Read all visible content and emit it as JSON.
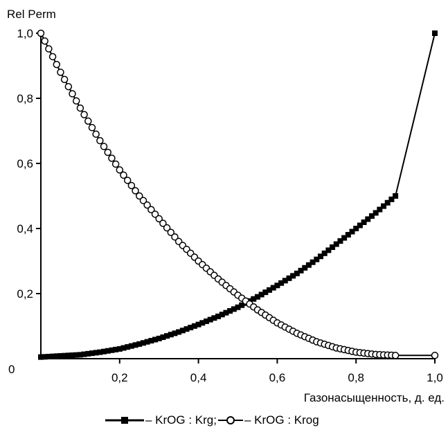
{
  "chart_data": {
    "type": "line",
    "title": "",
    "ylabel": "Rel Perm",
    "xlabel": "Газонасыщенность, д. ед.",
    "xlim": [
      0,
      1
    ],
    "ylim": [
      0,
      1
    ],
    "x_ticks": [
      "0,2",
      "0,4",
      "0,6",
      "0,8",
      "1,0"
    ],
    "y_ticks": [
      "0,2",
      "0,4",
      "0,6",
      "0,8",
      "1,0"
    ],
    "origin_label": "0",
    "grid": false,
    "legend_position": "bottom",
    "series": [
      {
        "name": "– KrOG : Krg;",
        "marker": "filled-square",
        "color": "#000000",
        "x": [
          0,
          0.1,
          0.15,
          0.2,
          0.25,
          0.3,
          0.35,
          0.4,
          0.45,
          0.5,
          0.55,
          0.6,
          0.65,
          0.7,
          0.75,
          0.8,
          0.85,
          0.9,
          1.0
        ],
        "y": [
          0.005,
          0.012,
          0.02,
          0.03,
          0.045,
          0.062,
          0.082,
          0.105,
          0.13,
          0.158,
          0.19,
          0.225,
          0.262,
          0.305,
          0.352,
          0.4,
          0.448,
          0.5,
          1.0
        ]
      },
      {
        "name": "– KrOG : Krog",
        "marker": "open-circle",
        "color": "#000000",
        "x": [
          0,
          0.05,
          0.1,
          0.15,
          0.2,
          0.25,
          0.3,
          0.35,
          0.4,
          0.45,
          0.5,
          0.55,
          0.6,
          0.65,
          0.7,
          0.75,
          0.8,
          0.85,
          0.9,
          1.0
        ],
        "y": [
          1.0,
          0.88,
          0.77,
          0.67,
          0.58,
          0.5,
          0.43,
          0.36,
          0.3,
          0.245,
          0.195,
          0.15,
          0.11,
          0.078,
          0.052,
          0.033,
          0.02,
          0.013,
          0.01,
          0.01
        ]
      }
    ]
  }
}
